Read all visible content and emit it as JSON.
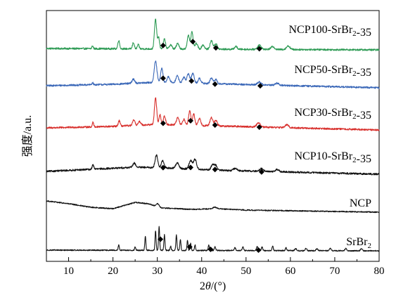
{
  "chart_data": {
    "type": "line",
    "xlabel": "2θ/(°)",
    "ylabel": "强度/a.u.",
    "xlim": [
      5,
      80
    ],
    "x_ticks": [
      10,
      20,
      30,
      40,
      50,
      60,
      70,
      80
    ],
    "y_ticks_shown": false,
    "stacked_offset_plot": true,
    "series": [
      {
        "name": "NCP100-SrBr₂-35",
        "color": "#2e9b55",
        "baseline_offset": 5,
        "noise": 2.5,
        "background": [
          [
            5,
            0
          ],
          [
            80,
            -2
          ]
        ],
        "peaks": [
          [
            15.4,
            4,
            0.15
          ],
          [
            21.3,
            12,
            0.2
          ],
          [
            24.6,
            9,
            0.2
          ],
          [
            25.7,
            6,
            0.2
          ],
          [
            29.6,
            42,
            0.25
          ],
          [
            30.3,
            16,
            0.2
          ],
          [
            31.6,
            14,
            0.25
          ],
          [
            33.0,
            6,
            0.3
          ],
          [
            34.6,
            8,
            0.3
          ],
          [
            37.0,
            20,
            0.25
          ],
          [
            37.8,
            24,
            0.25
          ],
          [
            38.8,
            8,
            0.3
          ],
          [
            40.3,
            6,
            0.3
          ],
          [
            42.2,
            12,
            0.3
          ],
          [
            43.2,
            8,
            0.3
          ],
          [
            47.7,
            4,
            0.3
          ],
          [
            53.0,
            6,
            0.4
          ],
          [
            56.0,
            4,
            0.4
          ],
          [
            59.5,
            5,
            0.4
          ]
        ],
        "markers": [
          31.3,
          38.0,
          43.2,
          53.0
        ]
      },
      {
        "name": "NCP50-SrBr₂-35",
        "color": "#3b68b8",
        "baseline_offset": 4,
        "noise": 2.5,
        "background": [
          [
            5,
            0
          ],
          [
            20,
            2
          ],
          [
            30,
            5
          ],
          [
            42,
            3
          ],
          [
            80,
            -3
          ]
        ],
        "peaks": [
          [
            15.4,
            3,
            0.15
          ],
          [
            24.6,
            6,
            0.3
          ],
          [
            29.6,
            30,
            0.3
          ],
          [
            31.0,
            20,
            0.25
          ],
          [
            32.5,
            8,
            0.3
          ],
          [
            34.5,
            10,
            0.3
          ],
          [
            36.0,
            8,
            0.3
          ],
          [
            37.0,
            13,
            0.3
          ],
          [
            38.0,
            14,
            0.3
          ],
          [
            39.5,
            7,
            0.3
          ],
          [
            42.2,
            8,
            0.3
          ],
          [
            43.2,
            6,
            0.3
          ],
          [
            53.0,
            4,
            0.4
          ],
          [
            57.0,
            3,
            0.4
          ]
        ],
        "markers": [
          31.3,
          37.7,
          43.0,
          53.2
        ]
      },
      {
        "name": "NCP30-SrBr₂-35",
        "color": "#d8302d",
        "baseline_offset": 3,
        "noise": 2.5,
        "background": [
          [
            5,
            0
          ],
          [
            20,
            2
          ],
          [
            30,
            5
          ],
          [
            42,
            3
          ],
          [
            80,
            -3
          ]
        ],
        "peaks": [
          [
            15.5,
            7,
            0.15
          ],
          [
            21.4,
            8,
            0.2
          ],
          [
            24.7,
            8,
            0.25
          ],
          [
            26.0,
            5,
            0.3
          ],
          [
            29.6,
            38,
            0.25
          ],
          [
            30.6,
            14,
            0.2
          ],
          [
            31.6,
            12,
            0.25
          ],
          [
            34.6,
            10,
            0.3
          ],
          [
            36.0,
            8,
            0.3
          ],
          [
            37.3,
            20,
            0.25
          ],
          [
            38.2,
            16,
            0.25
          ],
          [
            39.5,
            10,
            0.3
          ],
          [
            42.2,
            12,
            0.3
          ],
          [
            43.2,
            8,
            0.3
          ],
          [
            52.8,
            6,
            0.4
          ],
          [
            59.2,
            4,
            0.4
          ]
        ],
        "markers": [
          31.3,
          37.5,
          43.0,
          53.0
        ]
      },
      {
        "name": "NCP10-SrBr₂-35",
        "color": "#111111",
        "baseline_offset": 2,
        "noise": 2.5,
        "background": [
          [
            5,
            0
          ],
          [
            15,
            3
          ],
          [
            25,
            6
          ],
          [
            32,
            5
          ],
          [
            42,
            2
          ],
          [
            80,
            -4
          ]
        ],
        "peaks": [
          [
            15.5,
            6,
            0.2
          ],
          [
            24.8,
            6,
            0.3
          ],
          [
            29.8,
            18,
            0.3
          ],
          [
            31.2,
            10,
            0.3
          ],
          [
            34.5,
            8,
            0.35
          ],
          [
            37.5,
            12,
            0.35
          ],
          [
            38.5,
            14,
            0.35
          ],
          [
            42.5,
            8,
            0.35
          ],
          [
            43.2,
            6,
            0.3
          ],
          [
            47.5,
            3,
            0.4
          ],
          [
            53.5,
            4,
            0.4
          ],
          [
            57.0,
            3,
            0.4
          ]
        ],
        "markers": [
          31.3,
          37.5,
          43.0,
          53.5
        ]
      },
      {
        "name": "NCP",
        "color": "#111111",
        "baseline_offset": 1,
        "noise": 1.6,
        "background": [
          [
            5,
            14
          ],
          [
            10,
            10
          ],
          [
            15,
            5
          ],
          [
            20,
            3
          ],
          [
            25,
            12
          ],
          [
            28,
            10
          ],
          [
            31,
            4
          ],
          [
            38,
            2
          ],
          [
            43,
            3
          ],
          [
            50,
            1
          ],
          [
            60,
            0
          ],
          [
            70,
            -1
          ],
          [
            80,
            -2
          ]
        ],
        "peaks": [
          [
            30.1,
            4,
            0.3
          ],
          [
            43.0,
            2,
            0.5
          ]
        ],
        "markers": []
      },
      {
        "name": "SrBr₂",
        "color": "#111111",
        "baseline_offset": 0,
        "noise": 1.6,
        "background": [
          [
            5,
            0
          ],
          [
            80,
            -1
          ]
        ],
        "peaks": [
          [
            21.3,
            8,
            0.12
          ],
          [
            25.0,
            5,
            0.12
          ],
          [
            27.3,
            20,
            0.12
          ],
          [
            29.6,
            28,
            0.12
          ],
          [
            30.4,
            34,
            0.12
          ],
          [
            31.6,
            22,
            0.12
          ],
          [
            33.0,
            6,
            0.12
          ],
          [
            34.3,
            22,
            0.12
          ],
          [
            35.2,
            16,
            0.12
          ],
          [
            36.8,
            14,
            0.12
          ],
          [
            37.5,
            10,
            0.12
          ],
          [
            38.5,
            8,
            0.12
          ],
          [
            41.6,
            8,
            0.12
          ],
          [
            43.0,
            5,
            0.15
          ],
          [
            47.5,
            4,
            0.15
          ],
          [
            49.3,
            5,
            0.15
          ],
          [
            52.5,
            6,
            0.15
          ],
          [
            53.6,
            5,
            0.15
          ],
          [
            56.0,
            6,
            0.15
          ],
          [
            59.0,
            4,
            0.15
          ],
          [
            61.2,
            3,
            0.2
          ],
          [
            63.5,
            3,
            0.2
          ],
          [
            66.0,
            3,
            0.2
          ],
          [
            69.0,
            3,
            0.2
          ],
          [
            72.5,
            3,
            0.2
          ],
          [
            76.0,
            3,
            0.2
          ]
        ],
        "markers": [
          30.7,
          37.3,
          42.0,
          52.8
        ]
      }
    ]
  }
}
